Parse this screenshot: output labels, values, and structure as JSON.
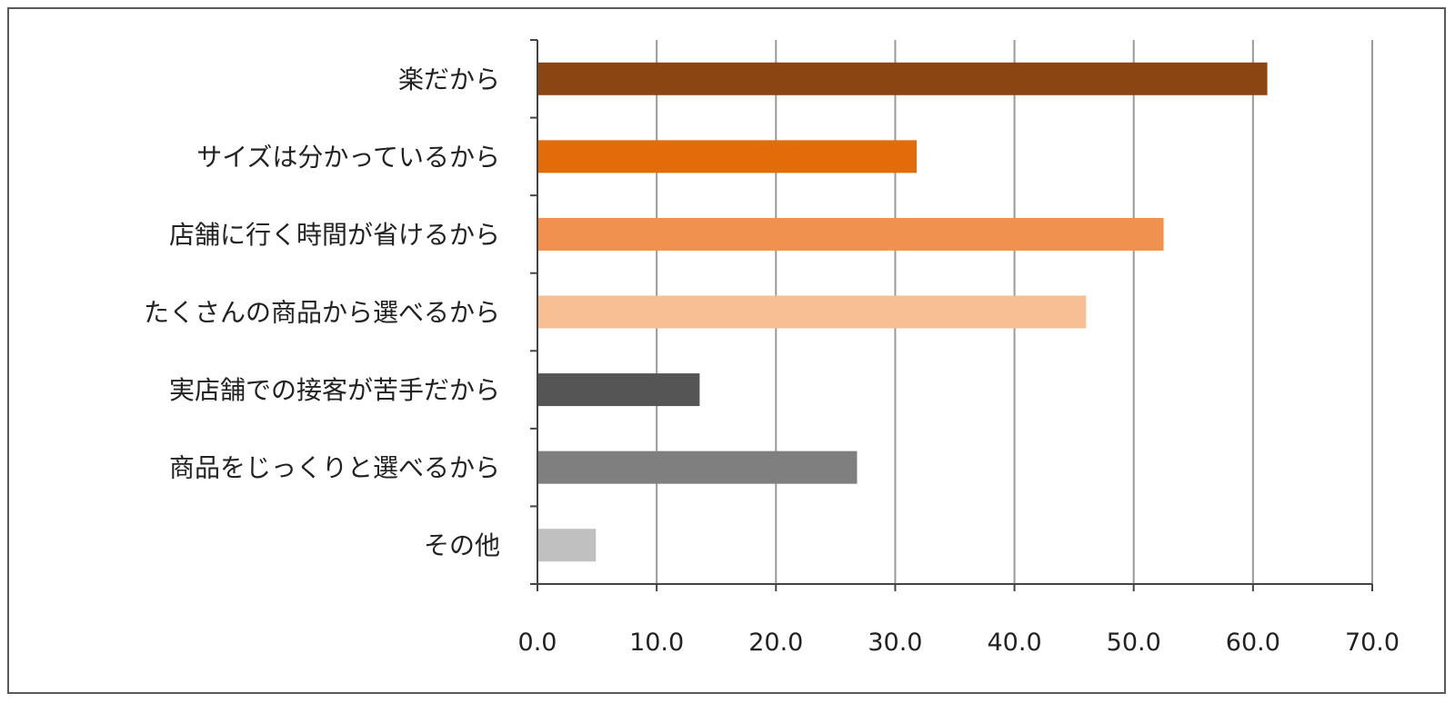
{
  "chart_data": {
    "type": "bar",
    "orientation": "horizontal",
    "categories": [
      "楽だから",
      "サイズは分かっているから",
      "店舗に行く時間が省けるから",
      "たくさんの商品から選べるから",
      "実店舗での接客が苦手だから",
      "商品をじっくりと選べるから",
      "その他"
    ],
    "values": [
      61.2,
      31.8,
      52.5,
      46.0,
      13.6,
      26.8,
      4.9
    ],
    "colors": [
      "#8B4513",
      "#E36C0A",
      "#F0914D",
      "#F7BF94",
      "#555555",
      "#7F7F7F",
      "#C0C0C0"
    ],
    "xlim": [
      0,
      70
    ],
    "xticks": [
      "0.0",
      "10.0",
      "20.0",
      "30.0",
      "40.0",
      "50.0",
      "60.0",
      "70.0"
    ],
    "grid": true,
    "title": "",
    "xlabel": "",
    "ylabel": ""
  }
}
